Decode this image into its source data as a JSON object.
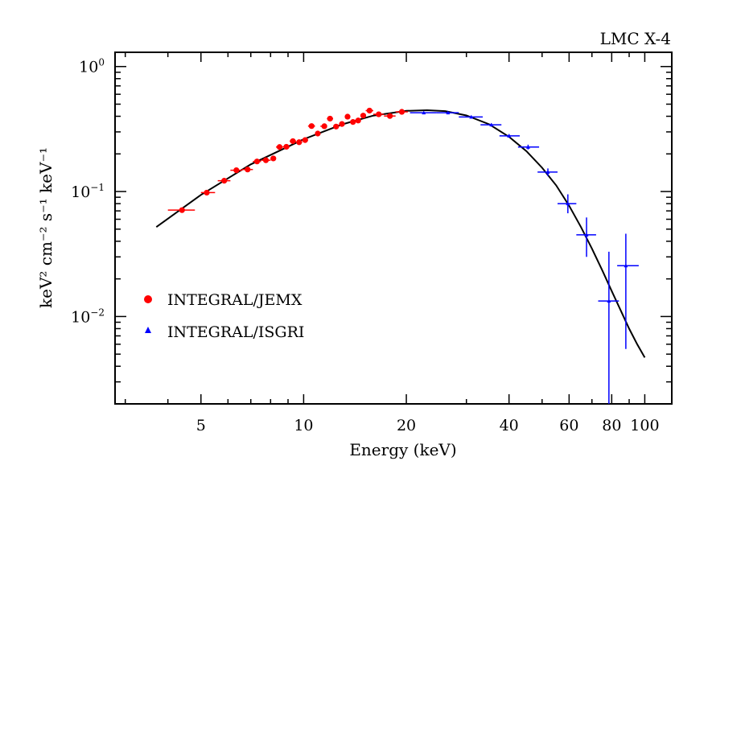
{
  "chart_data": {
    "type": "scatter",
    "title": "LMC X-4",
    "xlabel": "Energy (keV)",
    "ylabel": "keV² cm⁻² s⁻¹ keV⁻¹",
    "xscale": "log",
    "yscale": "log",
    "xlim": [
      2.8,
      120
    ],
    "ylim": [
      0.002,
      1.3
    ],
    "xticks": [
      {
        "value": 5,
        "label": "5"
      },
      {
        "value": 10,
        "label": "10"
      },
      {
        "value": 20,
        "label": "20"
      },
      {
        "value": 40,
        "label": "40"
      },
      {
        "value": 60,
        "label": "60"
      },
      {
        "value": 80,
        "label": "80"
      },
      {
        "value": 100,
        "label": "100"
      }
    ],
    "yticks": [
      {
        "value": 1,
        "mantissa": "10",
        "exponent": "0"
      },
      {
        "value": 0.1,
        "mantissa": "10",
        "exponent": "−1"
      },
      {
        "value": 0.01,
        "mantissa": "10",
        "exponent": "−2"
      }
    ],
    "legend_position": "left-center",
    "series": [
      {
        "name": "INTEGRAL/JEMX",
        "marker": "circle",
        "color": "#ff0000",
        "points": [
          {
            "x": 4.4,
            "y": 0.071,
            "xlo": 4.0,
            "xhi": 4.8
          },
          {
            "x": 5.2,
            "y": 0.098,
            "xlo": 5.0,
            "xhi": 5.5
          },
          {
            "x": 5.85,
            "y": 0.122,
            "xlo": 5.6,
            "xhi": 6.1
          },
          {
            "x": 6.35,
            "y": 0.148,
            "xlo": 6.1,
            "xhi": 6.6
          },
          {
            "x": 6.85,
            "y": 0.15,
            "xlo": 6.6,
            "xhi": 7.1
          },
          {
            "x": 7.3,
            "y": 0.174,
            "xlo": 7.1,
            "xhi": 7.5
          },
          {
            "x": 7.75,
            "y": 0.178,
            "xlo": 7.5,
            "xhi": 8.0
          },
          {
            "x": 8.15,
            "y": 0.184,
            "xlo": 8.0,
            "xhi": 8.3
          },
          {
            "x": 8.5,
            "y": 0.227,
            "xlo": 8.3,
            "xhi": 8.7
          },
          {
            "x": 8.9,
            "y": 0.228,
            "xlo": 8.7,
            "xhi": 9.1
          },
          {
            "x": 9.3,
            "y": 0.253,
            "xlo": 9.1,
            "xhi": 9.5
          },
          {
            "x": 9.7,
            "y": 0.248,
            "xlo": 9.5,
            "xhi": 9.9
          },
          {
            "x": 10.1,
            "y": 0.258,
            "xlo": 9.9,
            "xhi": 10.3
          },
          {
            "x": 10.55,
            "y": 0.334,
            "xlo": 10.3,
            "xhi": 10.8
          },
          {
            "x": 11.0,
            "y": 0.291,
            "xlo": 10.8,
            "xhi": 11.2
          },
          {
            "x": 11.5,
            "y": 0.333,
            "xlo": 11.2,
            "xhi": 11.7
          },
          {
            "x": 11.95,
            "y": 0.383,
            "xlo": 11.7,
            "xhi": 12.2
          },
          {
            "x": 12.45,
            "y": 0.331,
            "xlo": 12.2,
            "xhi": 12.7
          },
          {
            "x": 12.95,
            "y": 0.347,
            "xlo": 12.7,
            "xhi": 13.2
          },
          {
            "x": 13.45,
            "y": 0.397,
            "xlo": 13.2,
            "xhi": 13.7
          },
          {
            "x": 13.95,
            "y": 0.36,
            "xlo": 13.7,
            "xhi": 14.2
          },
          {
            "x": 14.45,
            "y": 0.37,
            "xlo": 14.2,
            "xhi": 14.7
          },
          {
            "x": 14.95,
            "y": 0.405,
            "xlo": 14.7,
            "xhi": 15.2
          },
          {
            "x": 15.6,
            "y": 0.444,
            "xlo": 15.2,
            "xhi": 16.0
          },
          {
            "x": 16.6,
            "y": 0.415,
            "xlo": 16.0,
            "xhi": 17.2
          },
          {
            "x": 17.9,
            "y": 0.402,
            "xlo": 17.2,
            "xhi": 18.6
          },
          {
            "x": 19.4,
            "y": 0.434,
            "xlo": 18.6,
            "xhi": 20.2
          }
        ]
      },
      {
        "name": "INTEGRAL/ISGRI",
        "marker": "triangle",
        "color": "#0000ff",
        "points": [
          {
            "x": 22.5,
            "y": 0.427,
            "xlo": 20.5,
            "xhi": 24.5,
            "ylo": 0.42,
            "yhi": 0.434
          },
          {
            "x": 26.5,
            "y": 0.427,
            "xlo": 24.5,
            "xhi": 28.5,
            "ylo": 0.42,
            "yhi": 0.434
          },
          {
            "x": 31.0,
            "y": 0.395,
            "xlo": 28.5,
            "xhi": 33.5,
            "ylo": 0.385,
            "yhi": 0.405
          },
          {
            "x": 35.5,
            "y": 0.342,
            "xlo": 33.0,
            "xhi": 38.0,
            "ylo": 0.333,
            "yhi": 0.351
          },
          {
            "x": 40.0,
            "y": 0.279,
            "xlo": 37.5,
            "xhi": 43.0,
            "ylo": 0.27,
            "yhi": 0.288
          },
          {
            "x": 45.5,
            "y": 0.227,
            "xlo": 42.5,
            "xhi": 49.0,
            "ylo": 0.217,
            "yhi": 0.237
          },
          {
            "x": 52.0,
            "y": 0.143,
            "xlo": 48.5,
            "xhi": 55.5,
            "ylo": 0.133,
            "yhi": 0.153
          },
          {
            "x": 59.5,
            "y": 0.08,
            "xlo": 55.5,
            "xhi": 63.0,
            "ylo": 0.067,
            "yhi": 0.095
          },
          {
            "x": 67.5,
            "y": 0.045,
            "xlo": 63.0,
            "xhi": 72.0,
            "ylo": 0.03,
            "yhi": 0.062
          },
          {
            "x": 78.5,
            "y": 0.0133,
            "xlo": 73.0,
            "xhi": 84.0,
            "ylo": 0.0018,
            "yhi": 0.033
          },
          {
            "x": 88.0,
            "y": 0.0255,
            "xlo": 83.0,
            "xhi": 96.0,
            "ylo": 0.0055,
            "yhi": 0.046
          }
        ]
      }
    ],
    "model": {
      "color": "#000000",
      "points": [
        {
          "x": 3.7,
          "y": 0.052
        },
        {
          "x": 5,
          "y": 0.094
        },
        {
          "x": 7,
          "y": 0.165
        },
        {
          "x": 10,
          "y": 0.262
        },
        {
          "x": 13,
          "y": 0.345
        },
        {
          "x": 16,
          "y": 0.405
        },
        {
          "x": 20,
          "y": 0.442
        },
        {
          "x": 23,
          "y": 0.447
        },
        {
          "x": 26,
          "y": 0.44
        },
        {
          "x": 30,
          "y": 0.406
        },
        {
          "x": 35,
          "y": 0.345
        },
        {
          "x": 40,
          "y": 0.274
        },
        {
          "x": 45,
          "y": 0.21
        },
        {
          "x": 50,
          "y": 0.155
        },
        {
          "x": 55,
          "y": 0.112
        },
        {
          "x": 60,
          "y": 0.077
        },
        {
          "x": 65,
          "y": 0.052
        },
        {
          "x": 70,
          "y": 0.035
        },
        {
          "x": 75,
          "y": 0.0235
        },
        {
          "x": 80,
          "y": 0.016
        },
        {
          "x": 85,
          "y": 0.0112
        },
        {
          "x": 90,
          "y": 0.008
        },
        {
          "x": 95,
          "y": 0.006
        },
        {
          "x": 100,
          "y": 0.0047
        }
      ]
    }
  }
}
